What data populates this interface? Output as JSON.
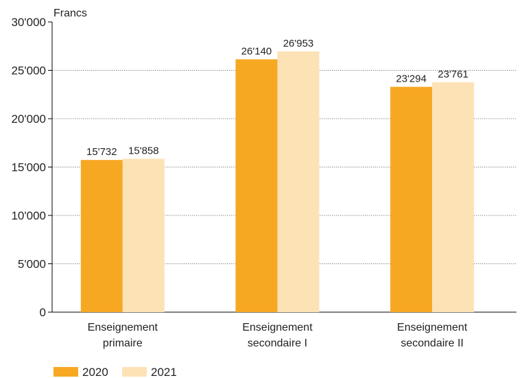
{
  "chart_data": {
    "type": "bar",
    "ylabel": "Francs",
    "categories": [
      [
        "Enseignement",
        "primaire"
      ],
      [
        "Enseignement",
        "secondaire I"
      ],
      [
        "Enseignement",
        "secondaire II"
      ]
    ],
    "series": [
      {
        "name": "2020",
        "color": "#F7A823",
        "values": [
          15732,
          26140,
          23294
        ],
        "labels": [
          "15'732",
          "26'140",
          "23'294"
        ]
      },
      {
        "name": "2021",
        "color": "#FDE2B6",
        "values": [
          15858,
          26953,
          23761
        ],
        "labels": [
          "15'858",
          "26'953",
          "23'761"
        ]
      }
    ],
    "ylim": [
      0,
      30000
    ],
    "yticks": [
      0,
      5000,
      10000,
      15000,
      20000,
      25000,
      30000
    ],
    "ytick_labels": [
      "0",
      "5'000",
      "10'000",
      "15'000",
      "20'000",
      "25'000",
      "30'000"
    ],
    "grid": true,
    "legend": "bottom-left"
  }
}
